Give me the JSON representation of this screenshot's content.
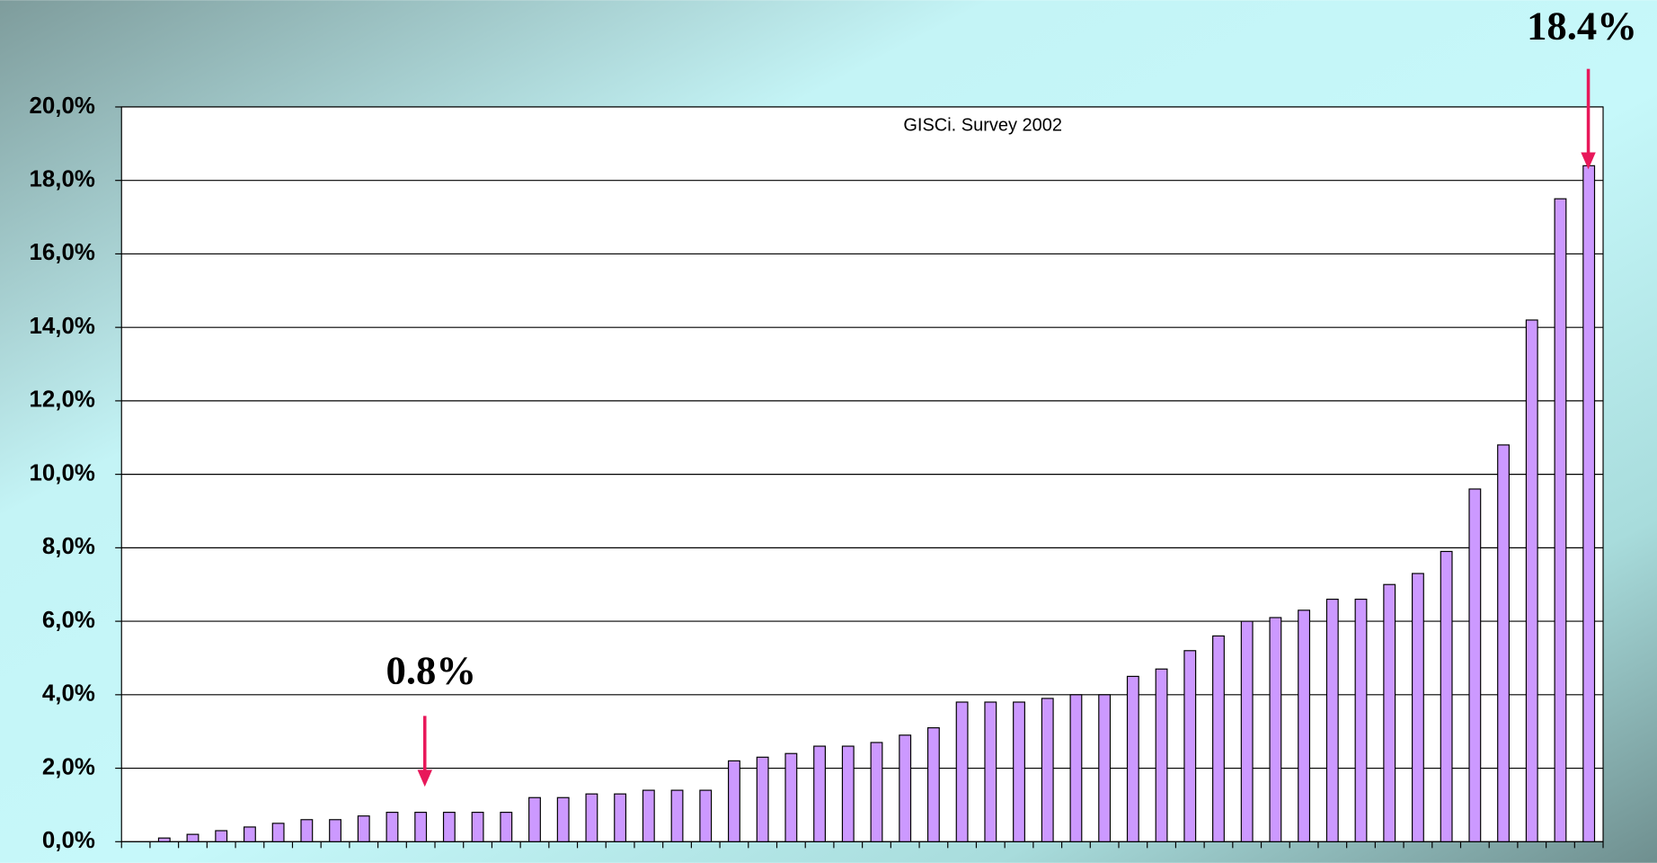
{
  "chart_data": {
    "type": "bar",
    "title": "GISCi.  Survey 2002",
    "categories": [
      null,
      null,
      null,
      null,
      null,
      null,
      null,
      null,
      null,
      null,
      null,
      null,
      null,
      null,
      null,
      null,
      null,
      null,
      null,
      null,
      null,
      null,
      null,
      null,
      null,
      null,
      null,
      null,
      null,
      null,
      null,
      null,
      null,
      null,
      null,
      null,
      null,
      null,
      null,
      null,
      null,
      null,
      null,
      null,
      null,
      null,
      null,
      null,
      null,
      null,
      null,
      null
    ],
    "values": [
      0,
      0.1,
      0.2,
      0.3,
      0.4,
      0.5,
      0.6,
      0.6,
      0.7,
      0.8,
      0.8,
      0.8,
      0.8,
      0.8,
      1.2,
      1.2,
      1.3,
      1.3,
      1.4,
      1.4,
      1.4,
      2.2,
      2.3,
      2.4,
      2.6,
      2.6,
      2.7,
      2.9,
      3.1,
      3.8,
      3.8,
      3.8,
      3.9,
      4.0,
      4.0,
      4.5,
      4.7,
      5.2,
      5.6,
      6.0,
      6.1,
      6.3,
      6.6,
      6.6,
      7.0,
      7.3,
      7.9,
      9.6,
      10.8,
      14.2,
      17.5,
      18.4
    ],
    "color": "#cc99ff",
    "ylim": [
      0,
      20
    ],
    "yticks": [
      {
        "value": 0,
        "label": "0,0%"
      },
      {
        "value": 2,
        "label": "2,0%"
      },
      {
        "value": 4,
        "label": "4,0%"
      },
      {
        "value": 6,
        "label": "6,0%"
      },
      {
        "value": 8,
        "label": "8,0%"
      },
      {
        "value": 10,
        "label": "10,0%"
      },
      {
        "value": 12,
        "label": "12,0%"
      },
      {
        "value": 14,
        "label": "14,0%"
      },
      {
        "value": 16,
        "label": "16,0%"
      },
      {
        "value": 18,
        "label": "18,0%"
      },
      {
        "value": 20,
        "label": "20,0%"
      }
    ],
    "grid": true,
    "annotations": [
      "0.8%",
      "18.4%"
    ]
  }
}
